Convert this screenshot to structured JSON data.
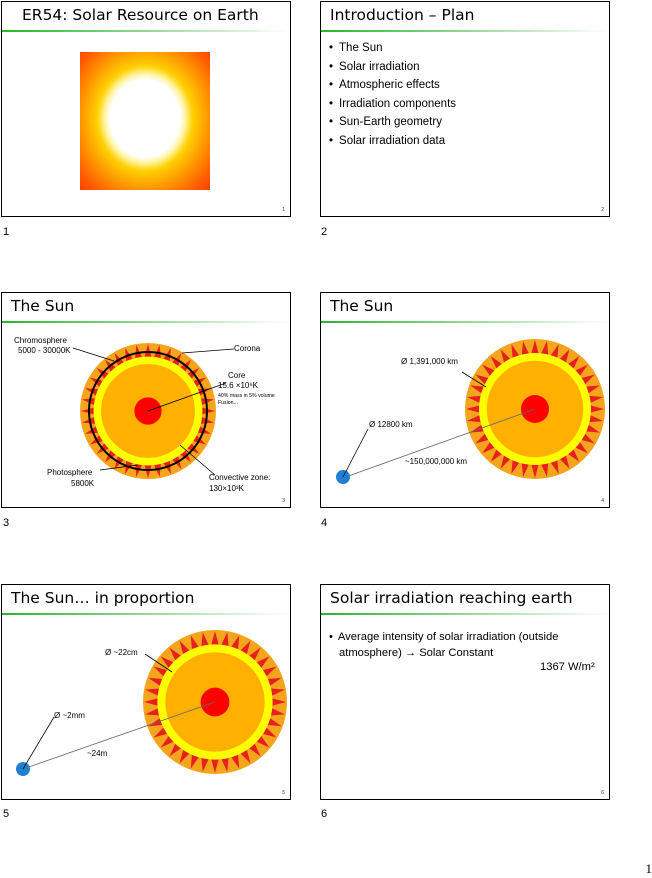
{
  "slides": [
    {
      "number": "1",
      "title": "ER54: Solar Resource on Earth"
    },
    {
      "number": "2",
      "title": "Introduction – Plan",
      "bullets": [
        "The Sun",
        "Solar irradiation",
        "Atmospheric effects",
        "Irradiation components",
        "Sun-Earth geometry",
        "Solar irradiation data"
      ]
    },
    {
      "number": "3",
      "title": "The Sun",
      "labels": {
        "chromosphere": "Chromosphere",
        "chromosphere_temp": "5000 - 30000K",
        "corona": "Corona",
        "core": "Core",
        "core_temp": "15.6 ×10⁶K",
        "core_note1": "40% mass in 5% volume",
        "core_note2": "Fusion...",
        "photosphere": "Photosphere",
        "photosphere_temp": "5800K",
        "convective": "Convective zone:",
        "convective_temp": "130×10³K"
      }
    },
    {
      "number": "4",
      "title": "The Sun",
      "labels": {
        "sun_diameter": "Ø 1,391,000 km",
        "earth_diameter": "Ø 12800 km",
        "distance": "~150,000,000 km"
      }
    },
    {
      "number": "5",
      "title": "The Sun… in proportion",
      "labels": {
        "sun_diameter": "Ø ~22cm",
        "earth_diameter": "Ø ~2mm",
        "distance": "~24m"
      }
    },
    {
      "number": "6",
      "title": "Solar irradiation reaching earth",
      "bullet_line1": "Average intensity of solar irradiation (outside",
      "bullet_line2": "atmosphere) → Solar Constant",
      "value": "1367 W/m²"
    }
  ],
  "page_number": "1",
  "colors": {
    "title_rule": "#2bb52b",
    "sun_outer": "#f4a51c",
    "sun_yellow": "#ffff00",
    "sun_orange": "#ffb000",
    "core": "#ff0000",
    "earth": "#1f7fd1",
    "spike": "#e81f1f"
  }
}
